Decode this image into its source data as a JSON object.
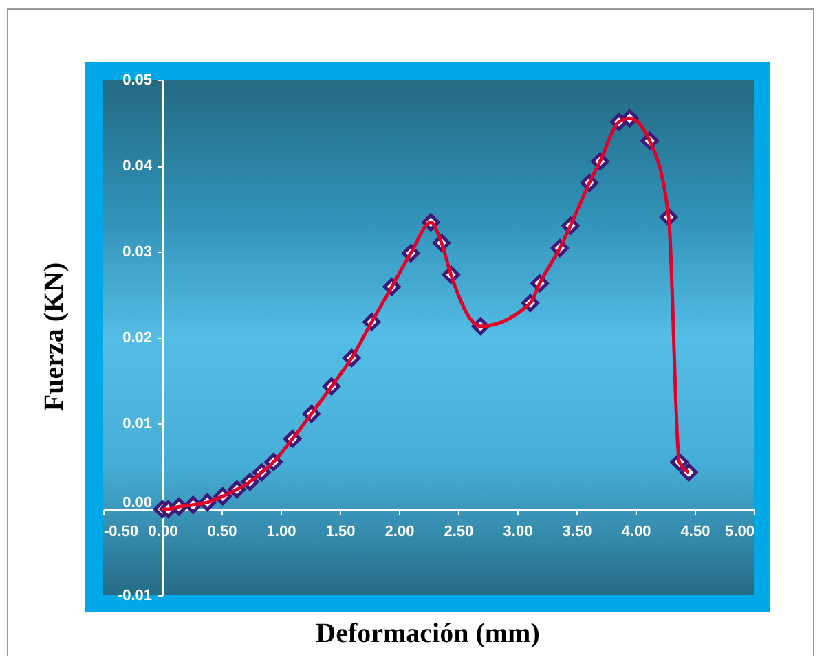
{
  "chart_data": {
    "type": "line",
    "xlabel": "Deformación (mm)",
    "ylabel": "Fuerza (KN)",
    "x": [
      0,
      0.05,
      0.14,
      0.26,
      0.38,
      0.51,
      0.63,
      0.74,
      0.84,
      0.94,
      1.1,
      1.26,
      1.43,
      1.6,
      1.77,
      1.94,
      2.1,
      2.27,
      2.36,
      2.44,
      2.69,
      3.11,
      3.19,
      3.36,
      3.45,
      3.61,
      3.7,
      3.86,
      3.95,
      4.12,
      4.28,
      4.37,
      4.45
    ],
    "series": [
      {
        "color": "#e0002a",
        "values": [
          0,
          0,
          0.0003,
          0.0005,
          0.0008,
          0.0015,
          0.0023,
          0.0032,
          0.0043,
          0.0055,
          0.0082,
          0.0111,
          0.0143,
          0.0176,
          0.0218,
          0.0259,
          0.0298,
          0.0334,
          0.031,
          0.0273,
          0.0213,
          0.024,
          0.0263,
          0.0304,
          0.033,
          0.038,
          0.0405,
          0.0451,
          0.0455,
          0.0429,
          0.034,
          0.0055,
          0.0043
        ]
      }
    ],
    "xlim": [
      -0.5,
      5
    ],
    "xticks": [
      {
        "value": -0.5,
        "label": "-0.50"
      },
      {
        "value": 0,
        "label": "0.00"
      },
      {
        "value": 0.5,
        "label": "0.50"
      },
      {
        "value": 1,
        "label": "1.00"
      },
      {
        "value": 1.5,
        "label": "1.50"
      },
      {
        "value": 2,
        "label": "2.00"
      },
      {
        "value": 2.5,
        "label": "2.50"
      },
      {
        "value": 3,
        "label": "3.00"
      },
      {
        "value": 3.5,
        "label": "3.50"
      },
      {
        "value": 4,
        "label": "4.00"
      },
      {
        "value": 4.5,
        "label": "4.50"
      },
      {
        "value": 5,
        "label": "5.00"
      }
    ],
    "ylim": [
      -0.01,
      0.05
    ],
    "yticks": [
      {
        "value": -0.01,
        "label": "-0.01"
      },
      {
        "value": 0,
        "label": "0.00"
      },
      {
        "value": 0.01,
        "label": "0.01"
      },
      {
        "value": 0.02,
        "label": "0.02"
      },
      {
        "value": 0.03,
        "label": "0.03"
      },
      {
        "value": 0.04,
        "label": "0.04"
      },
      {
        "value": 0.05,
        "label": "0.05"
      }
    ],
    "grid": false,
    "marker": "diamond",
    "line_style": "solid"
  }
}
